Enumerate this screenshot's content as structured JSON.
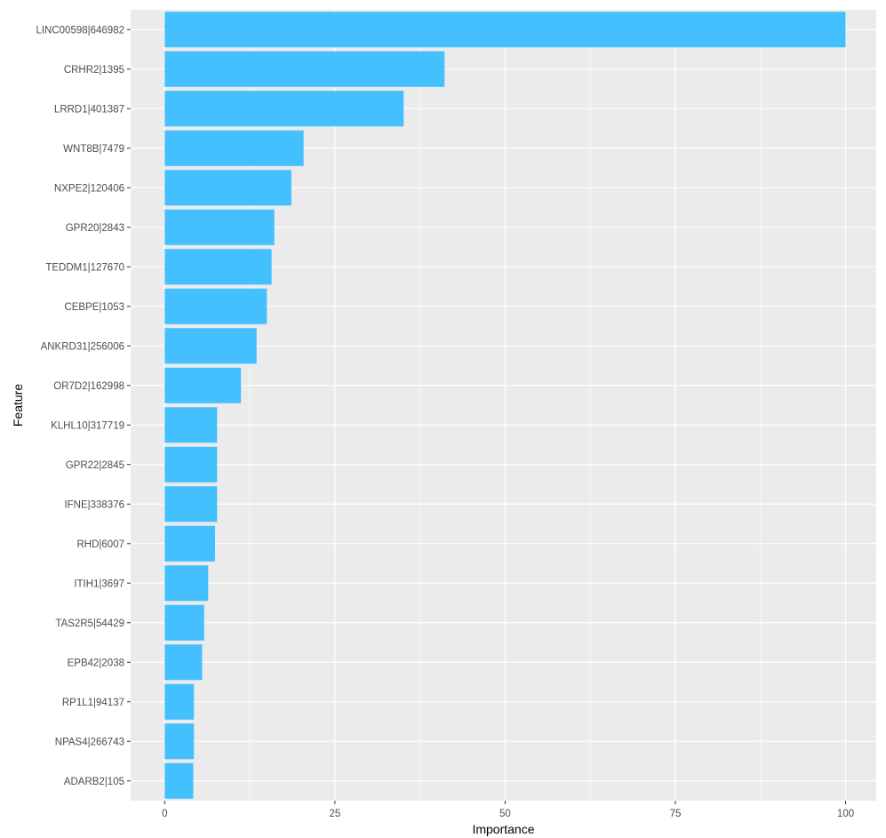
{
  "chart_data": {
    "type": "bar",
    "orientation": "horizontal",
    "categories": [
      "LINC00598|646982",
      "CRHR2|1395",
      "LRRD1|401387",
      "WNT8B|7479",
      "NXPE2|120406",
      "GPR20|2843",
      "TEDDM1|127670",
      "CEBPE|1053",
      "ANKRD31|256006",
      "OR7D2|162998",
      "KLHL10|317719",
      "GPR22|2845",
      "IFNE|338376",
      "RHD|6007",
      "ITIH1|3697",
      "TAS2R5|54429",
      "EPB42|2038",
      "RP1L1|94137",
      "NPAS4|266743",
      "ADARB2|105"
    ],
    "values": [
      100,
      41.1,
      35.1,
      20.4,
      18.6,
      16.1,
      15.7,
      15.0,
      13.5,
      11.2,
      7.7,
      7.7,
      7.7,
      7.4,
      6.4,
      5.8,
      5.5,
      4.3,
      4.3,
      4.2
    ],
    "xlabel": "Importance",
    "ylabel": "Feature",
    "xlim": [
      -5,
      104.5
    ],
    "xticks": [
      0,
      25,
      50,
      75,
      100
    ],
    "xtick_labels": [
      "0",
      "25",
      "50",
      "75",
      "100"
    ],
    "grid": true,
    "legend": "none",
    "colors": {
      "bar": "#45c0ff",
      "panel_background": "#ebebeb",
      "grid": "#ffffff"
    }
  }
}
